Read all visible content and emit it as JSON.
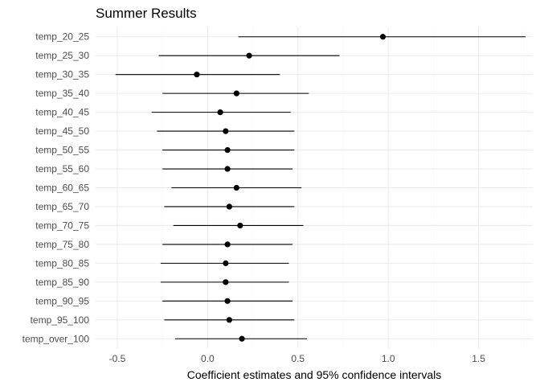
{
  "chart_data": {
    "type": "scatter",
    "subtype": "coefficient-plot",
    "title": "Summer Results",
    "xlabel": "Coefficient estimates and 95% confidence intervals",
    "ylabel": "",
    "xlim": [
      -0.62,
      1.8
    ],
    "x_ticks": [
      -0.5,
      0.0,
      0.5,
      1.0,
      1.5
    ],
    "x_tick_labels": [
      "-0.5",
      "0.0",
      "0.5",
      "1.0",
      "1.5"
    ],
    "grid": true,
    "legend": "none",
    "terms": [
      {
        "term": "temp_20_25",
        "estimate": 0.97,
        "lower": 0.17,
        "upper": 1.76
      },
      {
        "term": "temp_25_30",
        "estimate": 0.23,
        "lower": -0.27,
        "upper": 0.73
      },
      {
        "term": "temp_30_35",
        "estimate": -0.06,
        "lower": -0.51,
        "upper": 0.4
      },
      {
        "term": "temp_35_40",
        "estimate": 0.16,
        "lower": -0.25,
        "upper": 0.56
      },
      {
        "term": "temp_40_45",
        "estimate": 0.07,
        "lower": -0.31,
        "upper": 0.46
      },
      {
        "term": "temp_45_50",
        "estimate": 0.1,
        "lower": -0.28,
        "upper": 0.48
      },
      {
        "term": "temp_50_55",
        "estimate": 0.11,
        "lower": -0.25,
        "upper": 0.48
      },
      {
        "term": "temp_55_60",
        "estimate": 0.11,
        "lower": -0.25,
        "upper": 0.47
      },
      {
        "term": "temp_60_65",
        "estimate": 0.16,
        "lower": -0.2,
        "upper": 0.52
      },
      {
        "term": "temp_65_70",
        "estimate": 0.12,
        "lower": -0.24,
        "upper": 0.48
      },
      {
        "term": "temp_70_75",
        "estimate": 0.18,
        "lower": -0.19,
        "upper": 0.53
      },
      {
        "term": "temp_75_80",
        "estimate": 0.11,
        "lower": -0.25,
        "upper": 0.47
      },
      {
        "term": "temp_80_85",
        "estimate": 0.1,
        "lower": -0.26,
        "upper": 0.45
      },
      {
        "term": "temp_85_90",
        "estimate": 0.1,
        "lower": -0.26,
        "upper": 0.45
      },
      {
        "term": "temp_90_95",
        "estimate": 0.11,
        "lower": -0.25,
        "upper": 0.47
      },
      {
        "term": "temp_95_100",
        "estimate": 0.12,
        "lower": -0.24,
        "upper": 0.48
      },
      {
        "term": "temp_over_100",
        "estimate": 0.19,
        "lower": -0.18,
        "upper": 0.55
      }
    ],
    "point_color": "#000000",
    "grid_color": "#ebebeb"
  }
}
